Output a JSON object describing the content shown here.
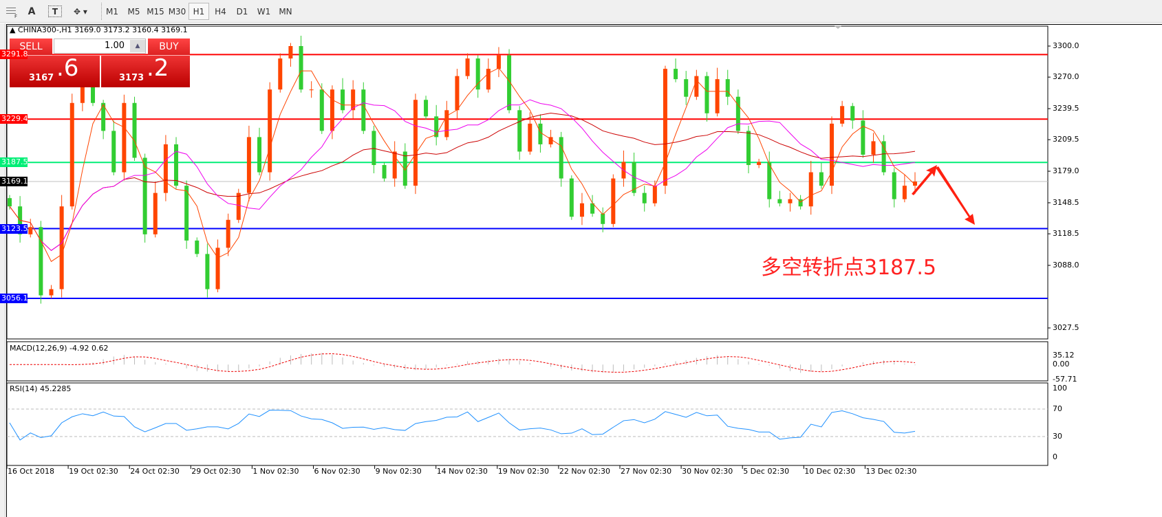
{
  "toolbar": {
    "tools": [
      {
        "icon": "grid-icon"
      },
      {
        "label": "A",
        "icon": "text-icon"
      },
      {
        "label": "T",
        "icon": "text-label-icon"
      },
      {
        "icon": "arrows-dropdown-icon"
      }
    ],
    "timeframes": [
      "M1",
      "M5",
      "M15",
      "M30",
      "H1",
      "H4",
      "D1",
      "W1",
      "MN"
    ],
    "active_timeframe": "H1"
  },
  "chart": {
    "header": "CHINA300-,H1  3169.0 3173.2 3160.4 3169.1",
    "symbol": "CHINA300-",
    "timeframe": "H1",
    "open": 3169.0,
    "high": 3173.2,
    "low": 3160.4,
    "close": 3169.1
  },
  "trade_panel": {
    "sell_label": "SELL",
    "buy_label": "BUY",
    "lot": "1.00",
    "sell_price_main": "3167",
    "sell_price_big": ".6",
    "buy_price_main": "3173",
    "buy_price_big": ".2",
    "color": "#d42020"
  },
  "annotation": {
    "text": "多空转折点3187.5",
    "color": "#ff2222"
  },
  "chart_data": [
    {
      "type": "candlestick",
      "title": "CHINA300-,H1",
      "price_ticks": [
        "3300.0",
        "3270.0",
        "3239.5",
        "3209.5",
        "3179.0",
        "3148.5",
        "3118.5",
        "3088.0",
        "3027.5"
      ],
      "ylim": [
        3010,
        3320
      ],
      "x_labels": [
        "16 Oct 2018",
        "19 Oct 02:30",
        "24 Oct 02:30",
        "29 Oct 02:30",
        "1 Nov 02:30",
        "6 Nov 02:30",
        "9 Nov 02:30",
        "14 Nov 02:30",
        "19 Nov 02:30",
        "22 Nov 02:30",
        "27 Nov 02:30",
        "30 Nov 02:30",
        "5 Dec 02:30",
        "10 Dec 02:30",
        "13 Dec 02:30"
      ],
      "close": [
        3145,
        3118,
        3125,
        3059,
        3065,
        3145,
        3245,
        3265,
        3245,
        3218,
        3178,
        3245,
        3192,
        3118,
        3158,
        3205,
        3165,
        3112,
        3099,
        3065,
        3105,
        3132,
        3158,
        3212,
        3178,
        3258,
        3288,
        3300,
        3258,
        3258,
        3218,
        3258,
        3238,
        3258,
        3218,
        3185,
        3172,
        3198,
        3165,
        3248,
        3232,
        3212,
        3238,
        3271,
        3288,
        3258,
        3278,
        3291,
        3238,
        3198,
        3225,
        3205,
        3212,
        3172,
        3135,
        3148,
        3138,
        3128,
        3172,
        3188,
        3158,
        3148,
        3165,
        3278,
        3268,
        3251,
        3271,
        3235,
        3268,
        3251,
        3218,
        3185,
        3188,
        3152,
        3148,
        3152,
        3145,
        3178,
        3165,
        3225,
        3242,
        3228,
        3195,
        3208,
        3178,
        3152,
        3165,
        3169
      ],
      "up_color": "#ff4500",
      "down_color": "#32cd32",
      "levels": [
        {
          "value": "3291.8",
          "color": "#ff0000"
        },
        {
          "value": "3229.4",
          "color": "#ff0000"
        },
        {
          "value": "3187.5",
          "color": "#00ee76"
        },
        {
          "value": "3169.1",
          "color": "#000000",
          "line": "#c0c0c0"
        },
        {
          "value": "3123.5",
          "color": "#0000ff"
        },
        {
          "value": "3056.1",
          "color": "#0000ff"
        }
      ],
      "moving_averages": [
        {
          "color": "#cc0000"
        },
        {
          "color": "#ee00ee"
        },
        {
          "color": "#ff4500"
        }
      ]
    },
    {
      "type": "macd",
      "label": "MACD(12,26,9) -4.92 0.62",
      "ticks": [
        "35.12",
        "0.00",
        "-57.71"
      ],
      "ylim": [
        -57.71,
        35.12
      ]
    },
    {
      "type": "line",
      "label": "RSI(14) 45.2285",
      "ticks": [
        "100",
        "70",
        "30",
        "0"
      ],
      "ylim": [
        0,
        100
      ],
      "levels": [
        70,
        30
      ],
      "color": "#1e90ff"
    }
  ]
}
